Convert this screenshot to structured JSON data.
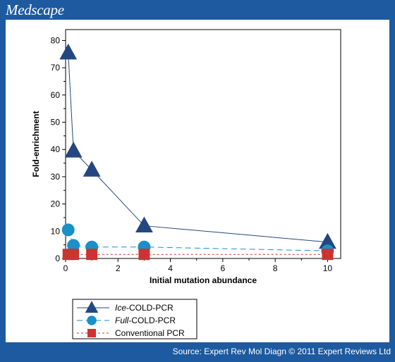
{
  "header": {
    "brand": "Medscape"
  },
  "footer": {
    "source": "Source: Expert Rev Mol Diagn © 2011 Expert Reviews Ltd"
  },
  "chart_data": {
    "type": "line",
    "title": "",
    "xlabel": "Initial mutation abundance",
    "ylabel": "Fold-enrichment",
    "xlim": [
      0,
      10.5
    ],
    "ylim": [
      0,
      84
    ],
    "xticks": [
      0,
      2,
      4,
      6,
      8,
      10
    ],
    "yticks": [
      0,
      10,
      20,
      30,
      40,
      50,
      60,
      70,
      80
    ],
    "grid": false,
    "legend": "bottom-left",
    "series": [
      {
        "name": "Ice-COLD-PCR",
        "name_italic": "Ice",
        "name_rest": "-COLD-PCR",
        "marker": "triangle",
        "line": "solid",
        "color": "#24477f",
        "x": [
          0.1,
          0.3,
          1,
          3,
          10
        ],
        "y": [
          75.5,
          39.5,
          32.5,
          12,
          6
        ]
      },
      {
        "name": "Full-COLD-PCR",
        "name_italic": "Full",
        "name_rest": "-COLD-PCR",
        "marker": "circle",
        "line": "dashed",
        "color": "#1a8fc8",
        "x": [
          0.1,
          0.3,
          1,
          3,
          10
        ],
        "y": [
          10.5,
          4.8,
          4.2,
          4.2,
          2.8
        ]
      },
      {
        "name": "Conventional PCR",
        "name_italic": "",
        "name_rest": "Conventional PCR",
        "marker": "square",
        "line": "dotted",
        "color": "#cc3333",
        "x": [
          0.1,
          0.3,
          1,
          3,
          10
        ],
        "y": [
          1.5,
          1.5,
          1.5,
          1.5,
          1.5
        ]
      }
    ]
  }
}
